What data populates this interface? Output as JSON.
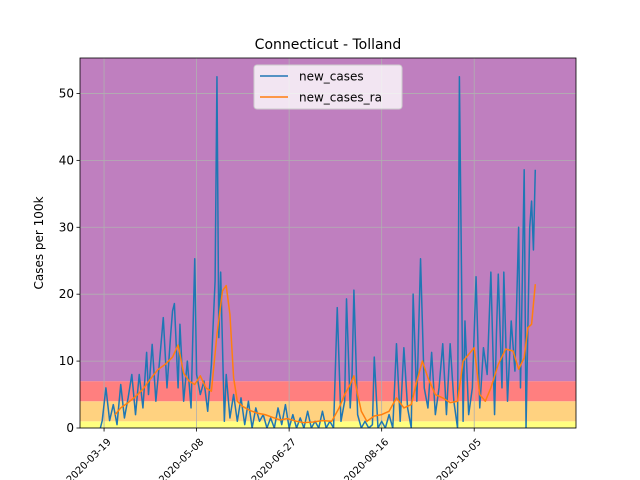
{
  "chart_data": {
    "type": "line",
    "title": "Connecticut - Tolland",
    "xlabel": "",
    "ylabel": "Cases per 100k",
    "x_range": [
      "2020-03-06",
      "2020-11-29"
    ],
    "ylim": [
      0,
      55.3
    ],
    "x_ticks": [
      "2020-03-19",
      "2020-05-08",
      "2020-06-27",
      "2020-08-16",
      "2020-10-05"
    ],
    "x_tick_labels": [
      "2020-03-19",
      "2020-05-08",
      "2020-06-27",
      "2020-08-16",
      "2020-10-05"
    ],
    "y_ticks": [
      0,
      10,
      20,
      30,
      40,
      50
    ],
    "y_tick_labels": [
      "0",
      "10",
      "20",
      "30",
      "40",
      "50"
    ],
    "grid": true,
    "legend_position": "top-center",
    "risk_bands": [
      {
        "from": 0,
        "to": 1,
        "color": "#ffff80"
      },
      {
        "from": 1,
        "to": 4,
        "color": "#ffd280"
      },
      {
        "from": 4,
        "to": 7,
        "color": "#ff7f7f"
      },
      {
        "from": 7,
        "to": 55.3,
        "color": "#bf7fbf"
      }
    ],
    "series": [
      {
        "name": "new_cases",
        "color": "#1f77b4",
        "points": [
          [
            "2020-03-17",
            0
          ],
          [
            "2020-03-18",
            1.1
          ],
          [
            "2020-03-20",
            6.0
          ],
          [
            "2020-03-22",
            1.1
          ],
          [
            "2020-03-24",
            3.5
          ],
          [
            "2020-03-26",
            0.5
          ],
          [
            "2020-03-28",
            6.5
          ],
          [
            "2020-03-30",
            1.5
          ],
          [
            "2020-04-01",
            4.5
          ],
          [
            "2020-04-03",
            8.0
          ],
          [
            "2020-04-05",
            2.0
          ],
          [
            "2020-04-07",
            8.0
          ],
          [
            "2020-04-09",
            3.0
          ],
          [
            "2020-04-11",
            11.3
          ],
          [
            "2020-04-12",
            5.0
          ],
          [
            "2020-04-14",
            12.5
          ],
          [
            "2020-04-16",
            4.0
          ],
          [
            "2020-04-18",
            10.0
          ],
          [
            "2020-04-20",
            16.5
          ],
          [
            "2020-04-22",
            6.0
          ],
          [
            "2020-04-24",
            14.0
          ],
          [
            "2020-04-25",
            17.5
          ],
          [
            "2020-04-26",
            18.6
          ],
          [
            "2020-04-28",
            6.0
          ],
          [
            "2020-04-29",
            15.5
          ],
          [
            "2020-05-01",
            4.0
          ],
          [
            "2020-05-03",
            10.0
          ],
          [
            "2020-05-05",
            3.0
          ],
          [
            "2020-05-07",
            25.3
          ],
          [
            "2020-05-08",
            8.0
          ],
          [
            "2020-05-10",
            5.0
          ],
          [
            "2020-05-12",
            7.0
          ],
          [
            "2020-05-14",
            2.5
          ],
          [
            "2020-05-16",
            9.5
          ],
          [
            "2020-05-18",
            22.0
          ],
          [
            "2020-05-19",
            52.5
          ],
          [
            "2020-05-20",
            13.5
          ],
          [
            "2020-05-21",
            23.3
          ],
          [
            "2020-05-23",
            1.0
          ],
          [
            "2020-05-24",
            8.0
          ],
          [
            "2020-05-26",
            1.5
          ],
          [
            "2020-05-28",
            5.0
          ],
          [
            "2020-05-30",
            1.0
          ],
          [
            "2020-06-01",
            4.5
          ],
          [
            "2020-06-03",
            0.5
          ],
          [
            "2020-06-05",
            4.0
          ],
          [
            "2020-06-07",
            0
          ],
          [
            "2020-06-09",
            3.0
          ],
          [
            "2020-06-11",
            1.0
          ],
          [
            "2020-06-13",
            2.0
          ],
          [
            "2020-06-15",
            0
          ],
          [
            "2020-06-17",
            1.5
          ],
          [
            "2020-06-19",
            0
          ],
          [
            "2020-06-21",
            3.0
          ],
          [
            "2020-06-23",
            0.5
          ],
          [
            "2020-06-25",
            3.5
          ],
          [
            "2020-06-27",
            0
          ],
          [
            "2020-06-29",
            2.0
          ],
          [
            "2020-07-01",
            0
          ],
          [
            "2020-07-03",
            1.5
          ],
          [
            "2020-07-05",
            0
          ],
          [
            "2020-07-07",
            2.5
          ],
          [
            "2020-07-09",
            0
          ],
          [
            "2020-07-11",
            1.0
          ],
          [
            "2020-07-13",
            0
          ],
          [
            "2020-07-15",
            2.5
          ],
          [
            "2020-07-17",
            0
          ],
          [
            "2020-07-19",
            1.0
          ],
          [
            "2020-07-21",
            0
          ],
          [
            "2020-07-23",
            18.0
          ],
          [
            "2020-07-25",
            1.0
          ],
          [
            "2020-07-27",
            4.0
          ],
          [
            "2020-07-28",
            19.3
          ],
          [
            "2020-07-30",
            3.0
          ],
          [
            "2020-07-31",
            8.0
          ],
          [
            "2020-08-01",
            20.6
          ],
          [
            "2020-08-03",
            2.0
          ],
          [
            "2020-08-05",
            0
          ],
          [
            "2020-08-07",
            1.0
          ],
          [
            "2020-08-09",
            0
          ],
          [
            "2020-08-11",
            0.5
          ],
          [
            "2020-08-12",
            10.6
          ],
          [
            "2020-08-14",
            0
          ],
          [
            "2020-08-16",
            1.0
          ],
          [
            "2020-08-18",
            0
          ],
          [
            "2020-08-20",
            2.0
          ],
          [
            "2020-08-22",
            0
          ],
          [
            "2020-08-24",
            12.6
          ],
          [
            "2020-08-26",
            1.0
          ],
          [
            "2020-08-28",
            12.0
          ],
          [
            "2020-08-30",
            3.0
          ],
          [
            "2020-09-01",
            0
          ],
          [
            "2020-09-02",
            20.0
          ],
          [
            "2020-09-04",
            4.0
          ],
          [
            "2020-09-06",
            25.3
          ],
          [
            "2020-09-08",
            6.0
          ],
          [
            "2020-09-10",
            3.0
          ],
          [
            "2020-09-12",
            11.3
          ],
          [
            "2020-09-14",
            2.0
          ],
          [
            "2020-09-16",
            6.0
          ],
          [
            "2020-09-18",
            12.6
          ],
          [
            "2020-09-20",
            2.0
          ],
          [
            "2020-09-22",
            12.6
          ],
          [
            "2020-09-24",
            4.0
          ],
          [
            "2020-09-26",
            0
          ],
          [
            "2020-09-27",
            52.5
          ],
          [
            "2020-09-29",
            1.0
          ],
          [
            "2020-09-30",
            16.0
          ],
          [
            "2020-10-02",
            2.0
          ],
          [
            "2020-10-04",
            6.0
          ],
          [
            "2020-10-06",
            22.6
          ],
          [
            "2020-10-08",
            3.0
          ],
          [
            "2020-10-10",
            12.0
          ],
          [
            "2020-10-12",
            8.0
          ],
          [
            "2020-10-14",
            23.3
          ],
          [
            "2020-10-16",
            2.0
          ],
          [
            "2020-10-17",
            14.0
          ],
          [
            "2020-10-18",
            23.0
          ],
          [
            "2020-10-20",
            6.0
          ],
          [
            "2020-10-21",
            23.3
          ],
          [
            "2020-10-23",
            4.0
          ],
          [
            "2020-10-25",
            16.0
          ],
          [
            "2020-10-27",
            8.5
          ],
          [
            "2020-10-29",
            30.0
          ],
          [
            "2020-10-30",
            6.0
          ],
          [
            "2020-11-01",
            38.6
          ],
          [
            "2020-11-02",
            0
          ],
          [
            "2020-11-04",
            30.0
          ],
          [
            "2020-11-05",
            33.9
          ],
          [
            "2020-11-06",
            26.6
          ],
          [
            "2020-11-07",
            38.6
          ]
        ]
      },
      {
        "name": "new_cases_ra",
        "color": "#ff7f0e",
        "points": [
          [
            "2020-03-25",
            2.0
          ],
          [
            "2020-03-28",
            3.0
          ],
          [
            "2020-04-01",
            3.8
          ],
          [
            "2020-04-05",
            4.7
          ],
          [
            "2020-04-09",
            5.8
          ],
          [
            "2020-04-13",
            7.3
          ],
          [
            "2020-04-17",
            8.7
          ],
          [
            "2020-04-21",
            9.5
          ],
          [
            "2020-04-25",
            10.6
          ],
          [
            "2020-04-28",
            12.4
          ],
          [
            "2020-05-01",
            8.2
          ],
          [
            "2020-05-04",
            7.0
          ],
          [
            "2020-05-07",
            6.5
          ],
          [
            "2020-05-10",
            7.8
          ],
          [
            "2020-05-13",
            6.0
          ],
          [
            "2020-05-16",
            5.5
          ],
          [
            "2020-05-19",
            14.0
          ],
          [
            "2020-05-22",
            20.5
          ],
          [
            "2020-05-24",
            21.3
          ],
          [
            "2020-05-26",
            17.0
          ],
          [
            "2020-05-28",
            7.5
          ],
          [
            "2020-05-30",
            4.0
          ],
          [
            "2020-06-02",
            3.2
          ],
          [
            "2020-06-06",
            2.6
          ],
          [
            "2020-06-10",
            2.2
          ],
          [
            "2020-06-14",
            2.0
          ],
          [
            "2020-06-18",
            1.6
          ],
          [
            "2020-06-22",
            1.2
          ],
          [
            "2020-06-26",
            1.4
          ],
          [
            "2020-07-01",
            1.0
          ],
          [
            "2020-07-05",
            0.8
          ],
          [
            "2020-07-10",
            0.9
          ],
          [
            "2020-07-15",
            1.1
          ],
          [
            "2020-07-20",
            1.0
          ],
          [
            "2020-07-24",
            3.0
          ],
          [
            "2020-07-27",
            5.0
          ],
          [
            "2020-07-30",
            6.5
          ],
          [
            "2020-08-01",
            7.8
          ],
          [
            "2020-08-03",
            5.0
          ],
          [
            "2020-08-05",
            2.5
          ],
          [
            "2020-08-08",
            1.0
          ],
          [
            "2020-08-12",
            1.8
          ],
          [
            "2020-08-16",
            2.0
          ],
          [
            "2020-08-20",
            2.5
          ],
          [
            "2020-08-24",
            4.5
          ],
          [
            "2020-08-28",
            3.0
          ],
          [
            "2020-09-01",
            3.5
          ],
          [
            "2020-09-04",
            7.0
          ],
          [
            "2020-09-07",
            10.0
          ],
          [
            "2020-09-10",
            7.5
          ],
          [
            "2020-09-14",
            5.0
          ],
          [
            "2020-09-18",
            4.5
          ],
          [
            "2020-09-22",
            3.8
          ],
          [
            "2020-09-26",
            4.0
          ],
          [
            "2020-09-29",
            10.0
          ],
          [
            "2020-10-02",
            11.0
          ],
          [
            "2020-10-05",
            12.0
          ],
          [
            "2020-10-08",
            5.0
          ],
          [
            "2020-10-11",
            4.0
          ],
          [
            "2020-10-14",
            6.0
          ],
          [
            "2020-10-18",
            9.5
          ],
          [
            "2020-10-22",
            11.8
          ],
          [
            "2020-10-26",
            11.5
          ],
          [
            "2020-10-29",
            8.8
          ],
          [
            "2020-11-01",
            10.5
          ],
          [
            "2020-11-03",
            15.0
          ],
          [
            "2020-11-05",
            15.5
          ],
          [
            "2020-11-07",
            21.5
          ]
        ]
      }
    ]
  }
}
